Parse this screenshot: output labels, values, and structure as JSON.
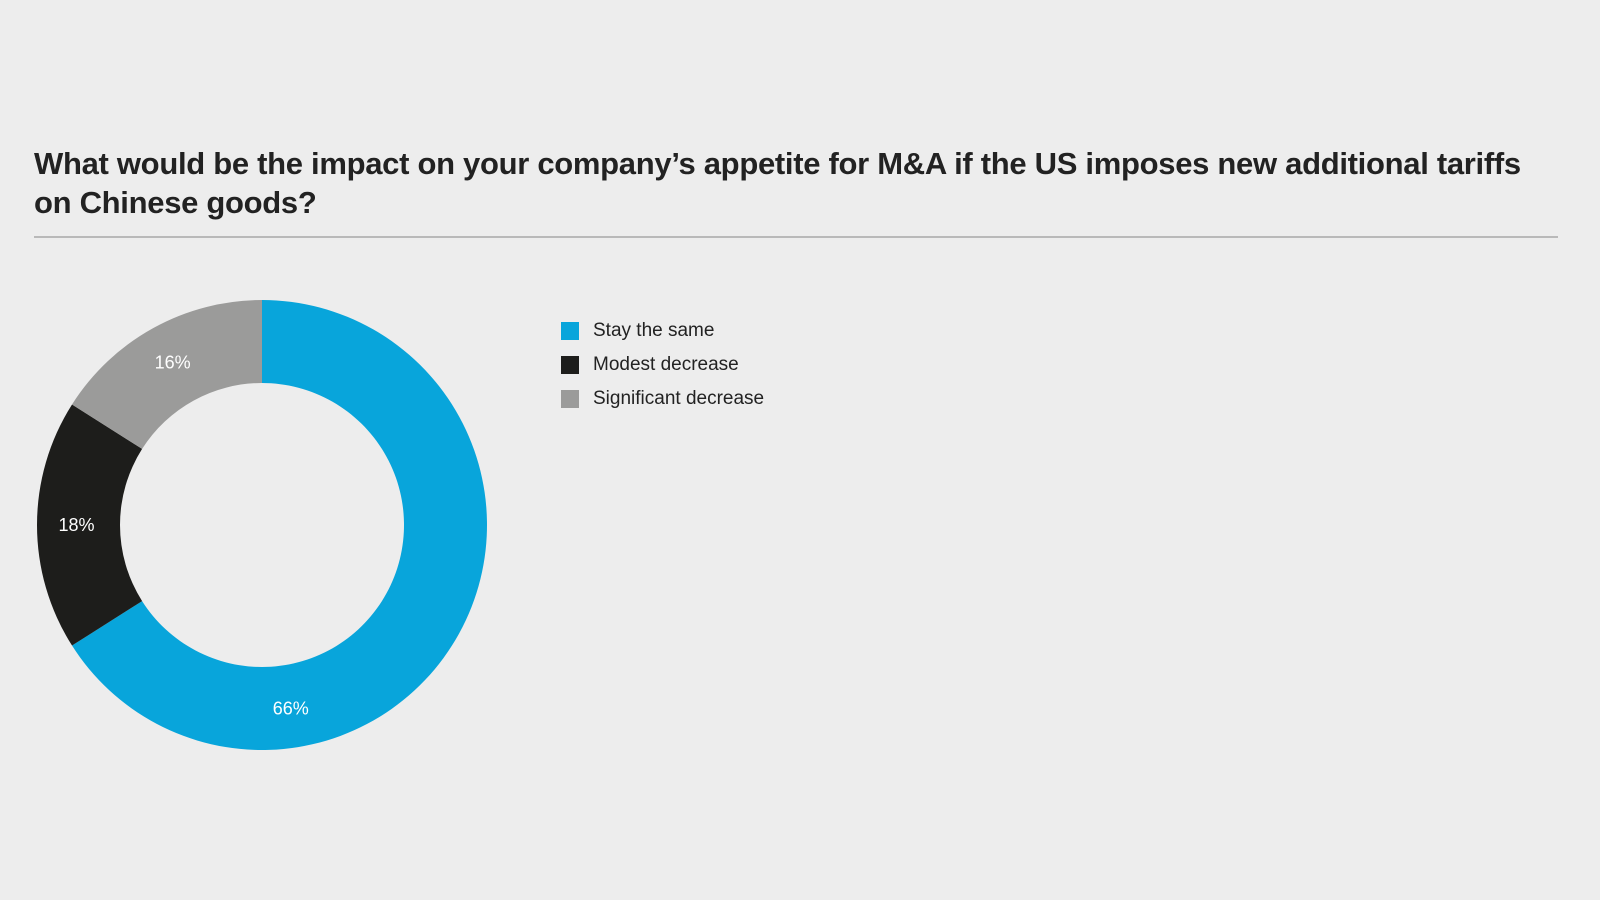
{
  "colors": {
    "background": "#ededed",
    "title": "#222222",
    "divider": "#b9b9b9"
  },
  "chart_data": {
    "type": "pie",
    "variant": "donut",
    "title": "What would be the impact on your company’s appetite for M&A if the US imposes new additional tariffs on Chinese goods?",
    "unit": "%",
    "legend_position": "right",
    "slices": [
      {
        "label": "Stay the same",
        "value": 66,
        "value_label": "66%",
        "color": "#08a5db"
      },
      {
        "label": "Modest decrease",
        "value": 18,
        "value_label": "18%",
        "color": "#1d1d1b"
      },
      {
        "label": "Significant decrease",
        "value": 16,
        "value_label": "16%",
        "color": "#9b9b9a"
      }
    ]
  }
}
